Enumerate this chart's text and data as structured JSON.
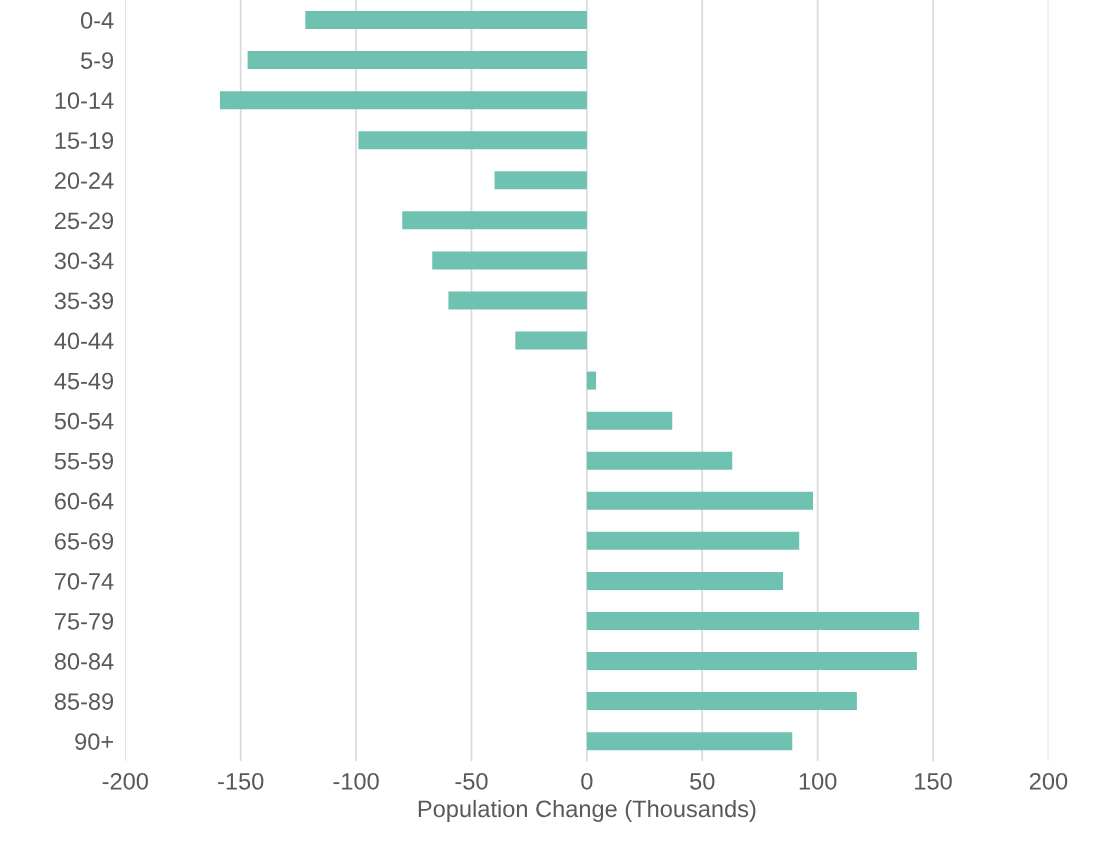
{
  "chart_data": {
    "type": "bar",
    "orientation": "horizontal",
    "xlabel": "Population Change (Thousands)",
    "categories": [
      "0-4",
      "5-9",
      "10-14",
      "15-19",
      "20-24",
      "25-29",
      "30-34",
      "35-39",
      "40-44",
      "45-49",
      "50-54",
      "55-59",
      "60-64",
      "65-69",
      "70-74",
      "75-79",
      "80-84",
      "85-89",
      "90+"
    ],
    "values": [
      -122,
      -147,
      -159,
      -99,
      -40,
      -80,
      -67,
      -60,
      -31,
      4,
      37,
      63,
      98,
      92,
      85,
      144,
      143,
      117,
      89
    ],
    "color": "#6fc1b2",
    "xlim": [
      -200,
      200
    ],
    "xticks": [
      -200,
      -150,
      -100,
      -50,
      0,
      50,
      100,
      150,
      200
    ],
    "grid": "x"
  }
}
